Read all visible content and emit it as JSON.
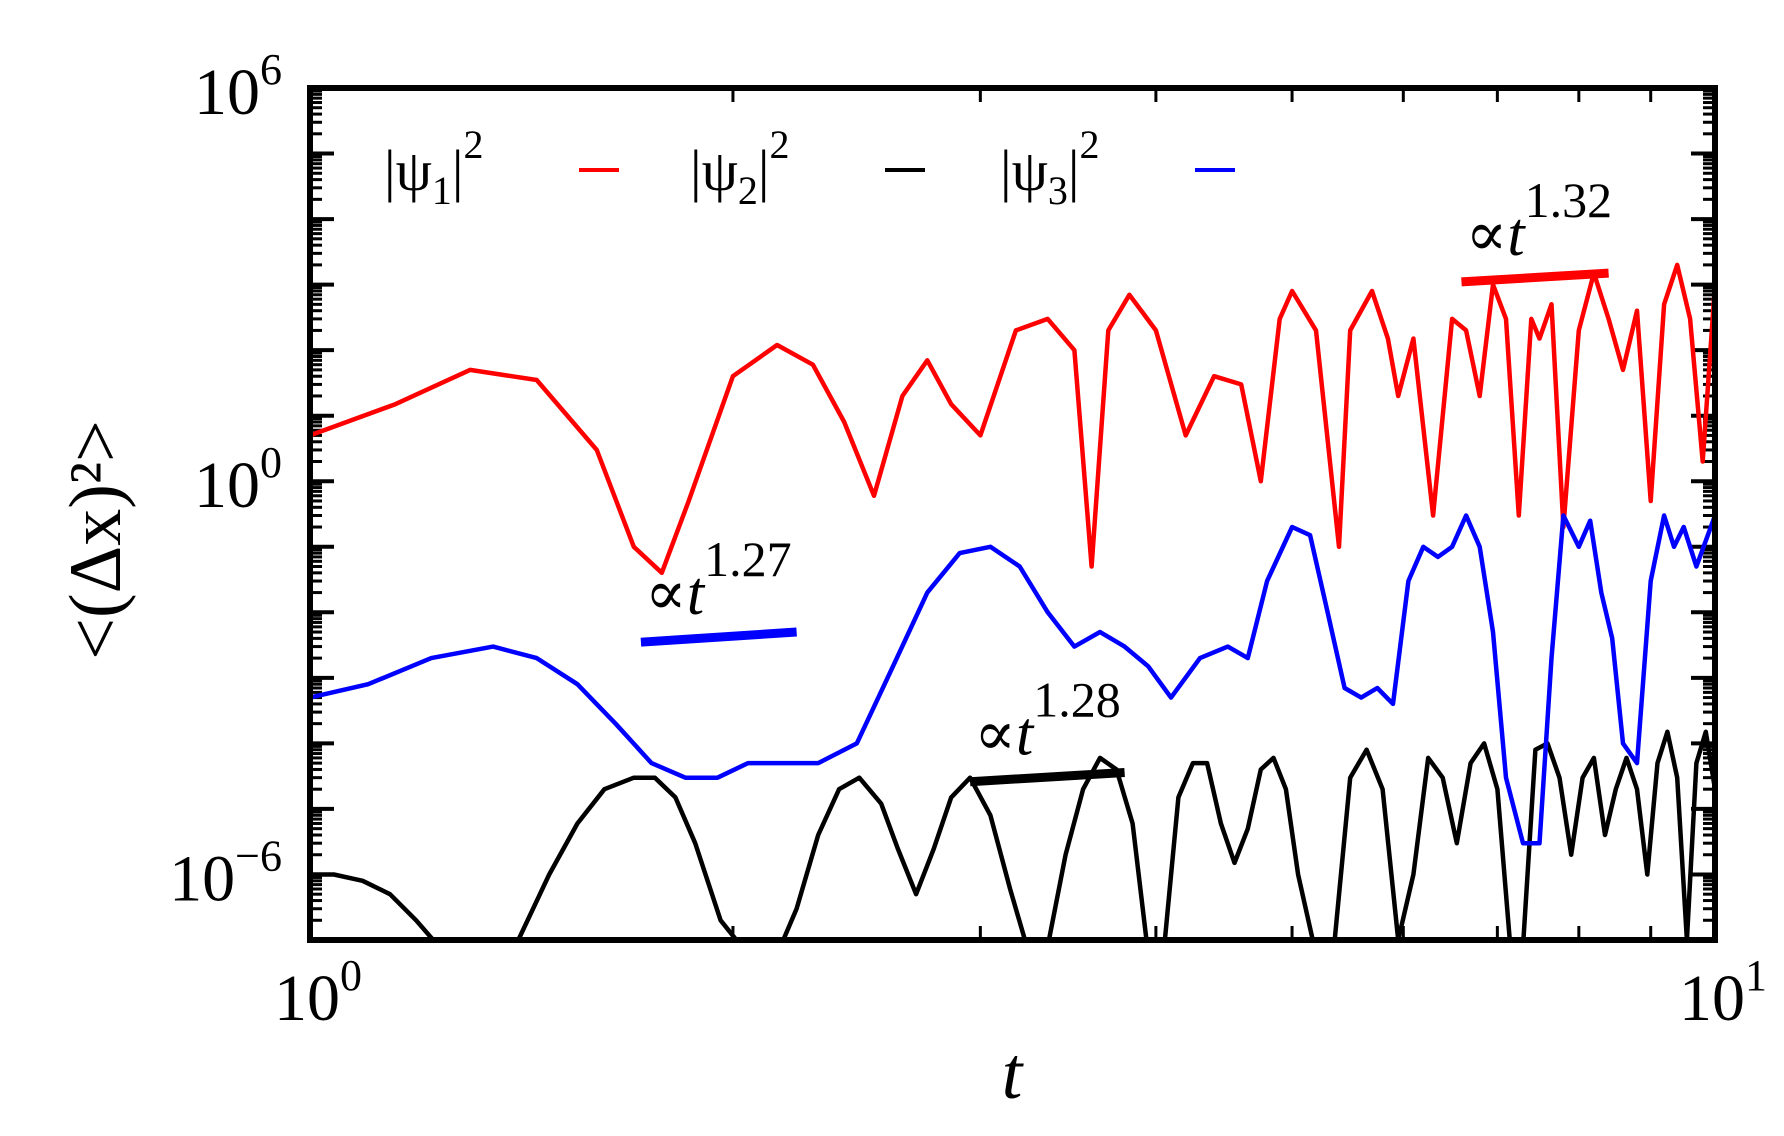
{
  "chart_data": {
    "type": "line",
    "title": "",
    "xlabel": "t",
    "ylabel": "<(Δx)²>",
    "xscale": "log",
    "yscale": "log",
    "xlim": [
      1,
      10
    ],
    "ylim": [
      1e-07,
      1000000.0
    ],
    "grid": false,
    "legend_position": "top-left, single row",
    "x_ticks": [
      {
        "value": 1,
        "base": "10",
        "exp": "0"
      },
      {
        "value": 10,
        "base": "10",
        "exp": "1"
      }
    ],
    "y_ticks": [
      {
        "value": 1e-06,
        "base": "10",
        "exp": "−6"
      },
      {
        "value": 1,
        "base": "10",
        "exp": "0"
      },
      {
        "value": 1000000.0,
        "base": "10",
        "exp": "6"
      }
    ],
    "series": [
      {
        "name": "|ψ₁|²",
        "legend_label": {
          "pre": "|ψ",
          "sub": "1",
          "post": "|",
          "sup": "2"
        },
        "color": "#ff0000",
        "x": [
          1,
          1.15,
          1.3,
          1.45,
          1.6,
          1.7,
          1.78,
          1.86,
          2.0,
          2.15,
          2.28,
          2.4,
          2.52,
          2.64,
          2.75,
          2.86,
          3.0,
          3.18,
          3.35,
          3.5,
          3.6,
          3.7,
          3.83,
          4.0,
          4.2,
          4.4,
          4.6,
          4.75,
          4.9,
          5.0,
          5.2,
          5.4,
          5.5,
          5.7,
          5.85,
          5.95,
          6.1,
          6.3,
          6.5,
          6.65,
          6.8,
          6.95,
          7.1,
          7.25,
          7.4,
          7.5,
          7.65,
          7.8,
          8.0,
          8.2,
          8.4,
          8.6,
          8.8,
          9.0,
          9.2,
          9.4,
          9.6,
          9.8,
          10
        ],
        "y": [
          5,
          15,
          50,
          35,
          3,
          0.1,
          0.04,
          0.5,
          40,
          120,
          60,
          8,
          0.6,
          20,
          70,
          15,
          5,
          200,
          300,
          100,
          0.05,
          200,
          700,
          200,
          5,
          40,
          30,
          1,
          300,
          800,
          200,
          0.1,
          200,
          800,
          150,
          20,
          150,
          0.3,
          300,
          200,
          20,
          1000,
          300,
          0.3,
          300,
          150,
          500,
          0.2,
          200,
          1500,
          300,
          50,
          400,
          0.5,
          500,
          2000,
          300,
          2,
          1000
        ],
        "annotation": {
          "text": "∝t",
          "exponent": "1.32",
          "slope": 1.32,
          "segment_x": [
            6.6,
            8.4
          ],
          "segment_y": [
            1100,
            1500
          ]
        }
      },
      {
        "name": "|ψ₂|²",
        "legend_label": {
          "pre": "|ψ",
          "sub": "2",
          "post": "|",
          "sup": "2"
        },
        "color": "#000000",
        "x": [
          1,
          1.04,
          1.09,
          1.14,
          1.19,
          1.235,
          1.29,
          1.34,
          1.4,
          1.48,
          1.55,
          1.62,
          1.7,
          1.76,
          1.82,
          1.88,
          1.96,
          2.05,
          2.15,
          2.22,
          2.3,
          2.38,
          2.46,
          2.55,
          2.62,
          2.7,
          2.78,
          2.86,
          2.95,
          3.05,
          3.15,
          3.25,
          3.35,
          3.45,
          3.55,
          3.65,
          3.75,
          3.85,
          3.95,
          4.05,
          4.15,
          4.25,
          4.35,
          4.45,
          4.55,
          4.65,
          4.75,
          4.85,
          4.95,
          5.05,
          5.2,
          5.35,
          5.5,
          5.65,
          5.8,
          5.95,
          6.1,
          6.25,
          6.4,
          6.55,
          6.7,
          6.85,
          7.0,
          7.15,
          7.3,
          7.45,
          7.6,
          7.75,
          7.9,
          8.05,
          8.2,
          8.35,
          8.5,
          8.65,
          8.8,
          8.95,
          9.1,
          9.25,
          9.4,
          9.55,
          9.7,
          9.85,
          10
        ],
        "y": [
          1e-06,
          1e-06,
          8e-07,
          5e-07,
          2e-07,
          8e-08,
          4e-08,
          4e-08,
          8e-08,
          1e-06,
          6e-06,
          2e-05,
          3e-05,
          3e-05,
          1.5e-05,
          3e-06,
          2e-07,
          6e-08,
          6e-08,
          3e-07,
          4e-06,
          2e-05,
          3e-05,
          1.2e-05,
          2.5e-06,
          5e-07,
          2.5e-06,
          1.5e-05,
          3e-05,
          8e-06,
          6e-07,
          6e-08,
          8e-08,
          2e-06,
          2e-05,
          6e-05,
          4e-05,
          6e-06,
          6e-08,
          6e-08,
          1.5e-05,
          5e-05,
          5e-05,
          6e-06,
          1.5e-06,
          5e-06,
          4e-05,
          6e-05,
          2e-05,
          1e-06,
          6e-08,
          6e-08,
          3e-05,
          8e-05,
          2e-05,
          1e-07,
          1e-06,
          6e-05,
          3e-05,
          3e-06,
          5e-05,
          0.0001,
          2e-05,
          8e-08,
          8e-08,
          8e-05,
          0.0001,
          3e-05,
          2e-06,
          3e-05,
          6e-05,
          4e-06,
          2e-05,
          6e-05,
          2e-05,
          1e-06,
          5e-05,
          0.00015,
          3e-05,
          1e-07,
          5e-05,
          0.00015,
          2e-05
        ],
        "annotation": {
          "text": "∝t",
          "exponent": "1.28",
          "slope": 1.28,
          "segment_x": [
            2.95,
            3.8
          ],
          "segment_y": [
            2.6e-05,
            3.6e-05
          ]
        }
      },
      {
        "name": "|ψ₃|²",
        "legend_label": {
          "pre": "|ψ",
          "sub": "3",
          "post": "|",
          "sup": "2"
        },
        "color": "#0000ff",
        "x": [
          1,
          1.1,
          1.22,
          1.35,
          1.45,
          1.55,
          1.65,
          1.75,
          1.85,
          1.95,
          2.05,
          2.15,
          2.3,
          2.45,
          2.6,
          2.75,
          2.9,
          3.05,
          3.2,
          3.35,
          3.5,
          3.65,
          3.8,
          3.95,
          4.1,
          4.3,
          4.5,
          4.65,
          4.8,
          5.0,
          5.15,
          5.3,
          5.45,
          5.6,
          5.75,
          5.9,
          6.05,
          6.2,
          6.35,
          6.5,
          6.65,
          6.8,
          6.95,
          7.1,
          7.3,
          7.5,
          7.65,
          7.8,
          8.0,
          8.15,
          8.3,
          8.45,
          8.6,
          8.8,
          9.0,
          9.2,
          9.35,
          9.5,
          9.7,
          10
        ],
        "y": [
          0.0005,
          0.0008,
          0.002,
          0.003,
          0.002,
          0.0008,
          0.0002,
          5e-05,
          3e-05,
          3e-05,
          5e-05,
          5e-05,
          5e-05,
          0.0001,
          0.0015,
          0.02,
          0.08,
          0.1,
          0.05,
          0.01,
          0.003,
          0.005,
          0.003,
          0.0015,
          0.0005,
          0.002,
          0.003,
          0.002,
          0.03,
          0.2,
          0.15,
          0.01,
          0.0007,
          0.0005,
          0.0007,
          0.0004,
          0.03,
          0.1,
          0.07,
          0.1,
          0.3,
          0.1,
          0.005,
          3e-05,
          3e-06,
          3e-06,
          0.002,
          0.3,
          0.1,
          0.25,
          0.02,
          0.004,
          0.0001,
          5e-05,
          0.03,
          0.3,
          0.1,
          0.2,
          0.05,
          0.3
        ],
        "annotation": {
          "text": "∝t",
          "exponent": "1.27",
          "slope": 1.27,
          "segment_x": [
            1.72,
            2.22
          ],
          "segment_y": [
            0.0035,
            0.005
          ]
        }
      }
    ]
  }
}
